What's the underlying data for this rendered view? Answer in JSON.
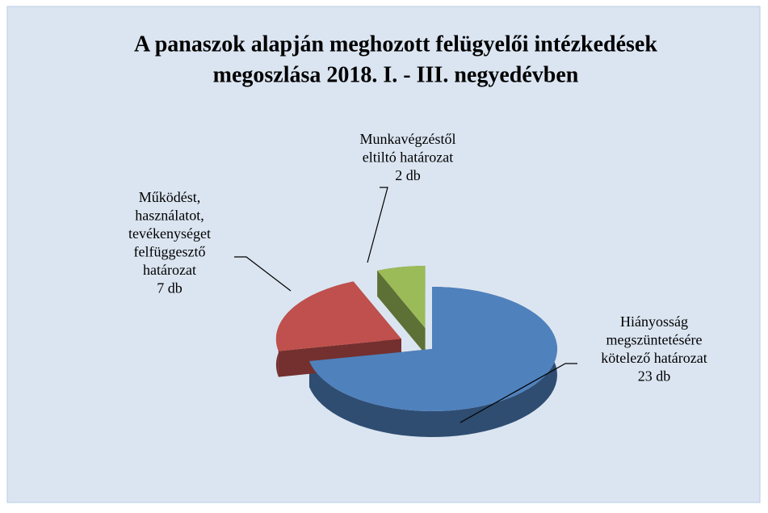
{
  "chart_data": {
    "type": "pie",
    "title": [
      "A panaszok alapján meghozott felügyelői intézkedések",
      "megoszlása 2018. I. - III. negyedévben"
    ],
    "categories": [
      [
        "Hiányosság",
        "megszüntetésére",
        "kötelező határozat"
      ],
      [
        "Működést,",
        "használatot,",
        "tevékenységet",
        "felfüggesztő",
        "határozat"
      ],
      [
        "Munkavégzéstől",
        "eltiltó határozat"
      ]
    ],
    "values": [
      23,
      7,
      2
    ],
    "value_labels": [
      "23 db",
      "7 db",
      "2 db"
    ],
    "colors": [
      "#4f81bd",
      "#c0504d",
      "#9bbb59"
    ]
  }
}
